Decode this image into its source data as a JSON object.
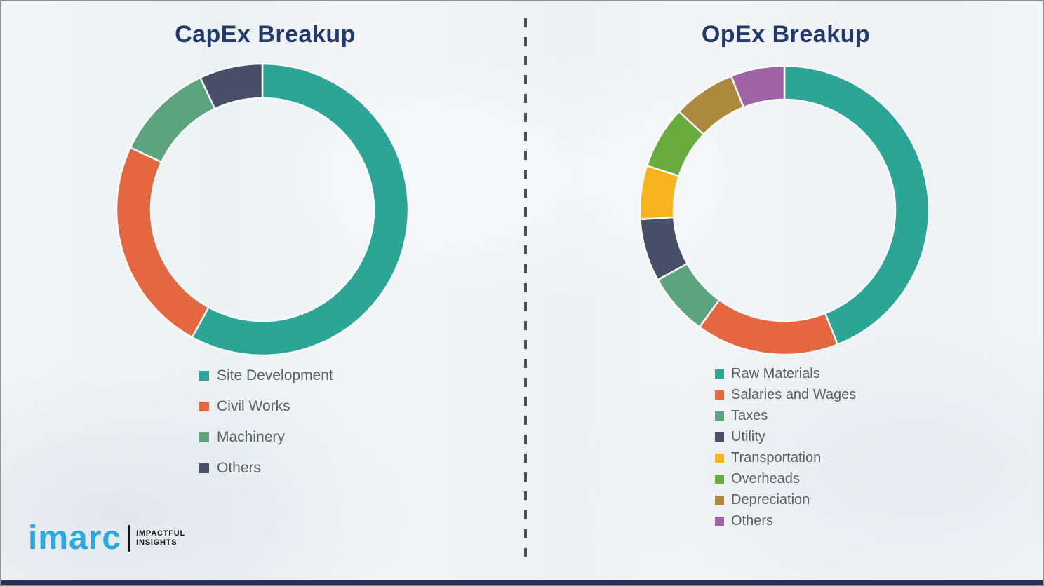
{
  "page": {
    "background_color": "#f3f4f6",
    "divider_style": "vertical-dashed",
    "bottom_bar_color": "#25335a",
    "title_color": "#203a6e",
    "legend_text_color": "#5d5d5d"
  },
  "logo": {
    "brand": "imarc",
    "tagline_line1": "IMPACTFUL",
    "tagline_line2": "INSIGHTS",
    "brand_color": "#2aa9e0"
  },
  "chart_data": [
    {
      "type": "pie",
      "subtype": "donut",
      "title": "CapEx Breakup",
      "categories": [
        "Site Development",
        "Civil Works",
        "Machinery",
        "Others"
      ],
      "values": [
        58,
        24,
        11,
        7
      ],
      "values_note": "percent shares estimated from arc angles; no numeric labels shown",
      "colors": [
        "#2ba696",
        "#e5673f",
        "#5ca47e",
        "#485069"
      ],
      "start_angle_deg": 0,
      "direction": "clockwise",
      "legend_position": "below-left",
      "data_labels": false
    },
    {
      "type": "pie",
      "subtype": "donut",
      "title": "OpEx Breakup",
      "categories": [
        "Raw Materials",
        "Salaries and Wages",
        "Taxes",
        "Utility",
        "Transportation",
        "Overheads",
        "Depreciation",
        "Others"
      ],
      "values": [
        44,
        16,
        7,
        7,
        6,
        7,
        7,
        6
      ],
      "values_note": "percent shares estimated from arc angles; no numeric labels shown",
      "colors": [
        "#2ba696",
        "#e5673f",
        "#5ca47e",
        "#485069",
        "#f6b41e",
        "#68ac3e",
        "#ab8a3f",
        "#9f63a5"
      ],
      "start_angle_deg": 0,
      "direction": "clockwise",
      "legend_position": "below-left",
      "data_labels": false
    }
  ]
}
